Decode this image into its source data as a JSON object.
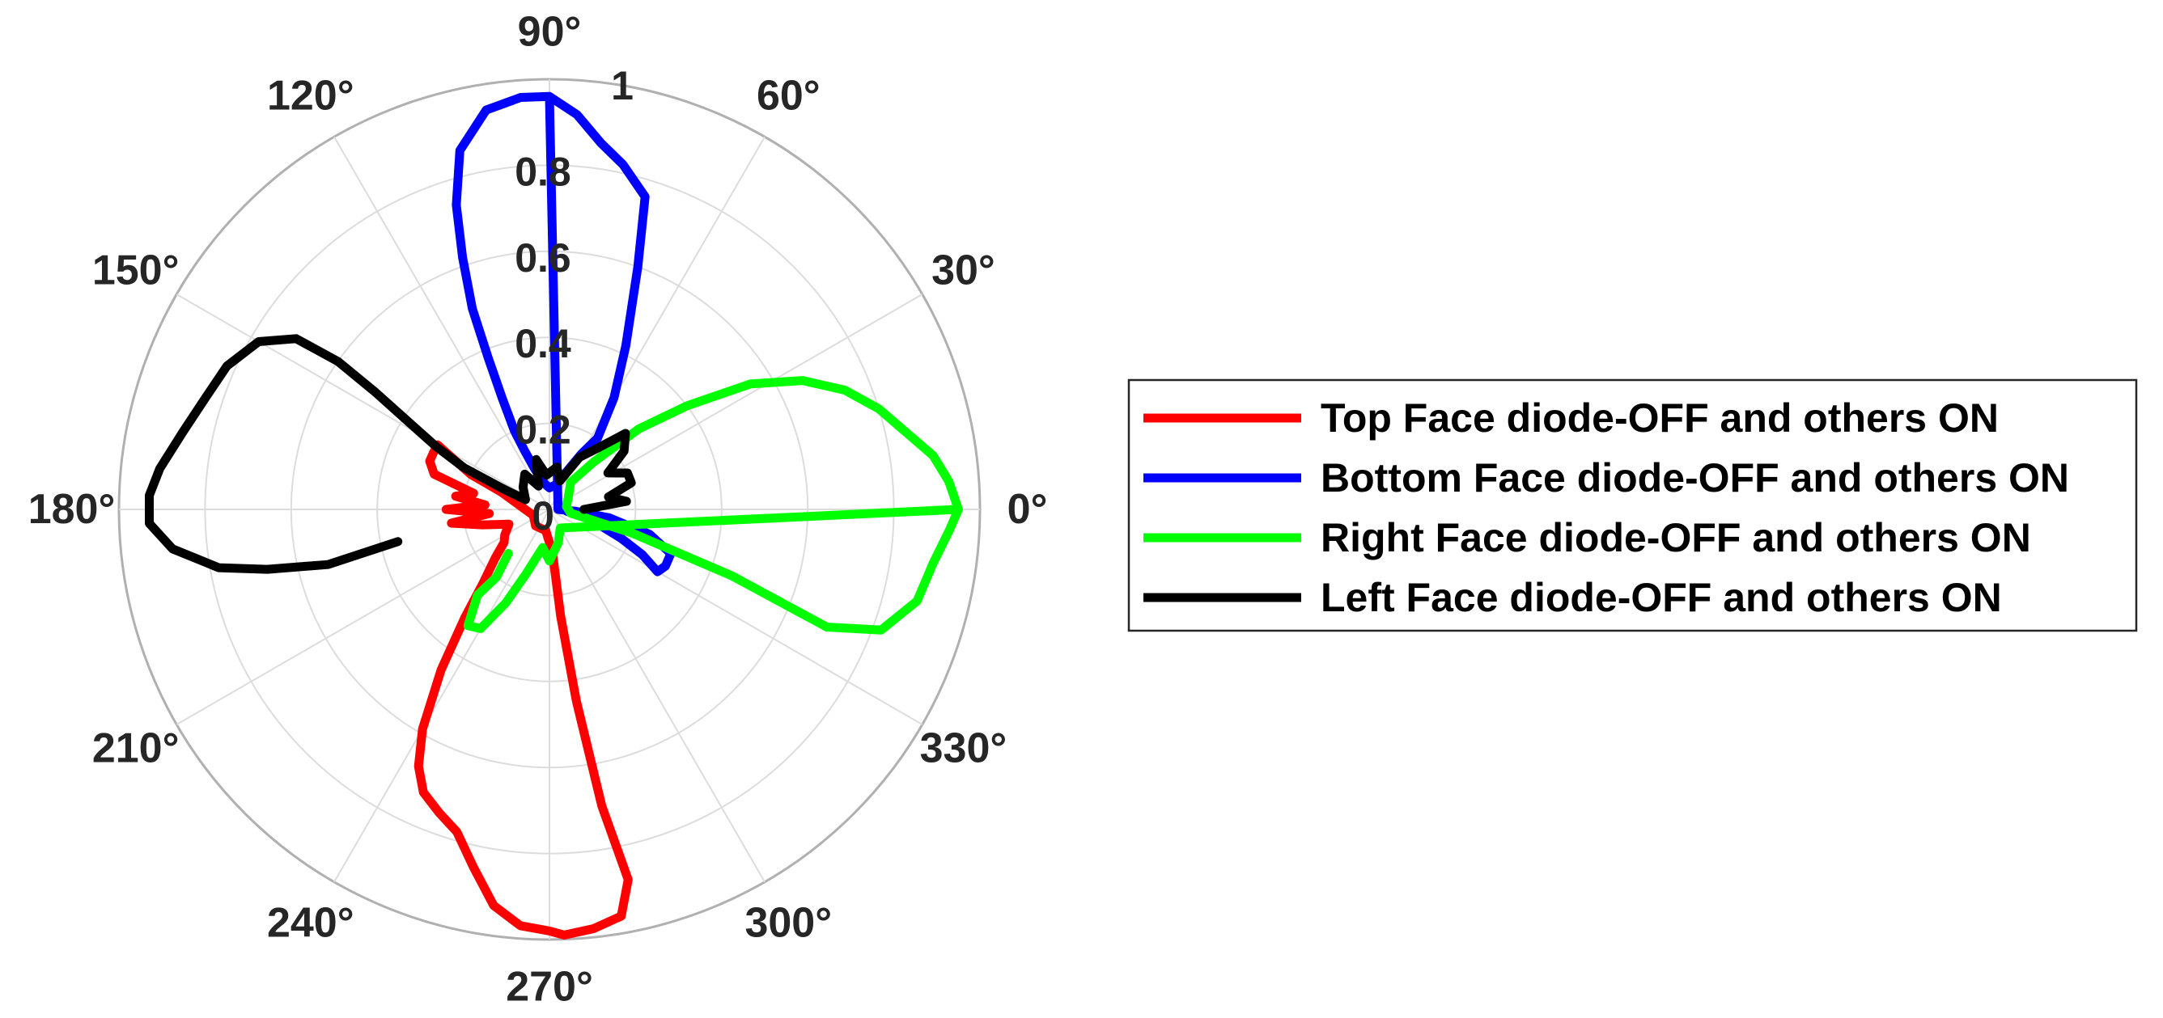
{
  "chart_data": {
    "type": "polar-line",
    "title": "",
    "theta_unit": "degrees",
    "theta_ticks": [
      "0°",
      "30°",
      "60°",
      "90°",
      "120°",
      "150°",
      "180°",
      "210°",
      "240°",
      "270°",
      "300°",
      "330°"
    ],
    "r_ticks": [
      "0",
      "0.2",
      "0.4",
      "0.6",
      "0.8",
      "1"
    ],
    "rlim": [
      0,
      1
    ],
    "grid": true,
    "legend_position": "right",
    "series": [
      {
        "name": "Top Face diode-OFF and others ON",
        "color": "#ff0000",
        "points": [
          [
            270,
            0.98
          ],
          [
            266,
            0.97
          ],
          [
            262,
            0.93
          ],
          [
            258,
            0.85
          ],
          [
            254,
            0.78
          ],
          [
            250,
            0.75
          ],
          [
            246,
            0.72
          ],
          [
            243,
            0.67
          ],
          [
            240,
            0.59
          ],
          [
            236,
            0.45
          ],
          [
            232,
            0.32
          ],
          [
            228,
            0.23
          ],
          [
            222,
            0.17
          ],
          [
            216,
            0.13
          ],
          [
            210,
            0.12
          ],
          [
            200,
            0.1
          ],
          [
            193,
            0.16
          ],
          [
            188,
            0.23
          ],
          [
            184,
            0.14
          ],
          [
            180,
            0.24
          ],
          [
            176,
            0.15
          ],
          [
            172,
            0.22
          ],
          [
            168,
            0.18
          ],
          [
            163,
            0.28
          ],
          [
            158,
            0.3
          ],
          [
            154,
            0.3
          ],
          [
            150,
            0.3
          ],
          [
            156,
            0.2
          ],
          [
            160,
            0.12
          ],
          [
            200,
            0.04
          ],
          [
            230,
            0.05
          ],
          [
            260,
            0.05
          ],
          [
            274,
            0.1
          ],
          [
            276,
            0.25
          ],
          [
            278,
            0.45
          ],
          [
            280,
            0.7
          ],
          [
            282,
            0.88
          ],
          [
            280,
            0.96
          ],
          [
            276,
            0.98
          ],
          [
            272,
            0.99
          ],
          [
            270,
            0.98
          ]
        ]
      },
      {
        "name": "Bottom Face diode-OFF and others ON",
        "color": "#0000ff",
        "points": [
          [
            90,
            0.96
          ],
          [
            94,
            0.96
          ],
          [
            99,
            0.94
          ],
          [
            104,
            0.86
          ],
          [
            107,
            0.74
          ],
          [
            109,
            0.62
          ],
          [
            111,
            0.5
          ],
          [
            112,
            0.38
          ],
          [
            113,
            0.28
          ],
          [
            114,
            0.2
          ],
          [
            113,
            0.15
          ],
          [
            110,
            0.1
          ],
          [
            100,
            0.06
          ],
          [
            90,
            0.05
          ],
          [
            75,
            0.06
          ],
          [
            65,
            0.1
          ],
          [
            60,
            0.15
          ],
          [
            56,
            0.2
          ],
          [
            60,
            0.3
          ],
          [
            65,
            0.42
          ],
          [
            70,
            0.6
          ],
          [
            73,
            0.76
          ],
          [
            78,
            0.82
          ],
          [
            82,
            0.86
          ],
          [
            86,
            0.92
          ],
          [
            90,
            0.96
          ],
          [
            0,
            0.02
          ],
          [
            -4,
            0.06
          ],
          [
            -8,
            0.14
          ],
          [
            -14,
            0.24
          ],
          [
            -20,
            0.3
          ],
          [
            -26,
            0.3
          ],
          [
            -30,
            0.29
          ],
          [
            -26,
            0.24
          ],
          [
            -22,
            0.18
          ],
          [
            -14,
            0.1
          ],
          [
            -6,
            0.04
          ]
        ]
      },
      {
        "name": "Right Face diode-OFF and others ON",
        "color": "#00ff00",
        "points": [
          [
            0,
            0.95
          ],
          [
            4,
            0.93
          ],
          [
            8,
            0.9
          ],
          [
            12,
            0.85
          ],
          [
            17,
            0.8
          ],
          [
            22,
            0.74
          ],
          [
            27,
            0.66
          ],
          [
            32,
            0.55
          ],
          [
            37,
            0.4
          ],
          [
            42,
            0.28
          ],
          [
            47,
            0.15
          ],
          [
            52,
            0.08
          ],
          [
            30,
            0.05
          ],
          [
            10,
            0.04
          ],
          [
            -10,
            0.05
          ],
          [
            -16,
            0.2
          ],
          [
            -20,
            0.45
          ],
          [
            -23,
            0.7
          ],
          [
            -20,
            0.82
          ],
          [
            -14,
            0.88
          ],
          [
            -8,
            0.9
          ],
          [
            -3,
            0.93
          ],
          [
            0,
            0.95
          ],
          [
            -60,
            0.05
          ],
          [
            -75,
            0.08
          ],
          [
            -90,
            0.12
          ],
          [
            -100,
            0.09
          ],
          [
            -110,
            0.16
          ],
          [
            -115,
            0.24
          ],
          [
            -120,
            0.32
          ],
          [
            -125,
            0.33
          ],
          [
            -130,
            0.26
          ],
          [
            -128,
            0.2
          ],
          [
            -133,
            0.14
          ]
        ]
      },
      {
        "name": "Left Face diode-OFF and others ON",
        "color": "#000000",
        "points": [
          [
            192,
            0.36
          ],
          [
            194,
            0.53
          ],
          [
            192,
            0.67
          ],
          [
            190,
            0.78
          ],
          [
            186,
            0.88
          ],
          [
            182,
            0.93
          ],
          [
            178,
            0.93
          ],
          [
            174,
            0.91
          ],
          [
            168,
            0.87
          ],
          [
            162,
            0.84
          ],
          [
            156,
            0.82
          ],
          [
            150,
            0.78
          ],
          [
            146,
            0.71
          ],
          [
            145,
            0.6
          ],
          [
            146,
            0.49
          ],
          [
            148,
            0.39
          ],
          [
            151,
            0.3
          ],
          [
            154,
            0.22
          ],
          [
            156,
            0.12
          ],
          [
            158,
            0.06
          ],
          [
            140,
            0.08
          ],
          [
            125,
            0.1
          ],
          [
            115,
            0.06
          ],
          [
            105,
            0.12
          ],
          [
            95,
            0.08
          ],
          [
            80,
            0.1
          ],
          [
            70,
            0.07
          ],
          [
            60,
            0.14
          ],
          [
            52,
            0.18
          ],
          [
            45,
            0.25
          ],
          [
            38,
            0.22
          ],
          [
            32,
            0.16
          ],
          [
            25,
            0.2
          ],
          [
            18,
            0.2
          ],
          [
            12,
            0.14
          ],
          [
            6,
            0.18
          ],
          [
            0,
            0.08
          ]
        ]
      }
    ]
  }
}
